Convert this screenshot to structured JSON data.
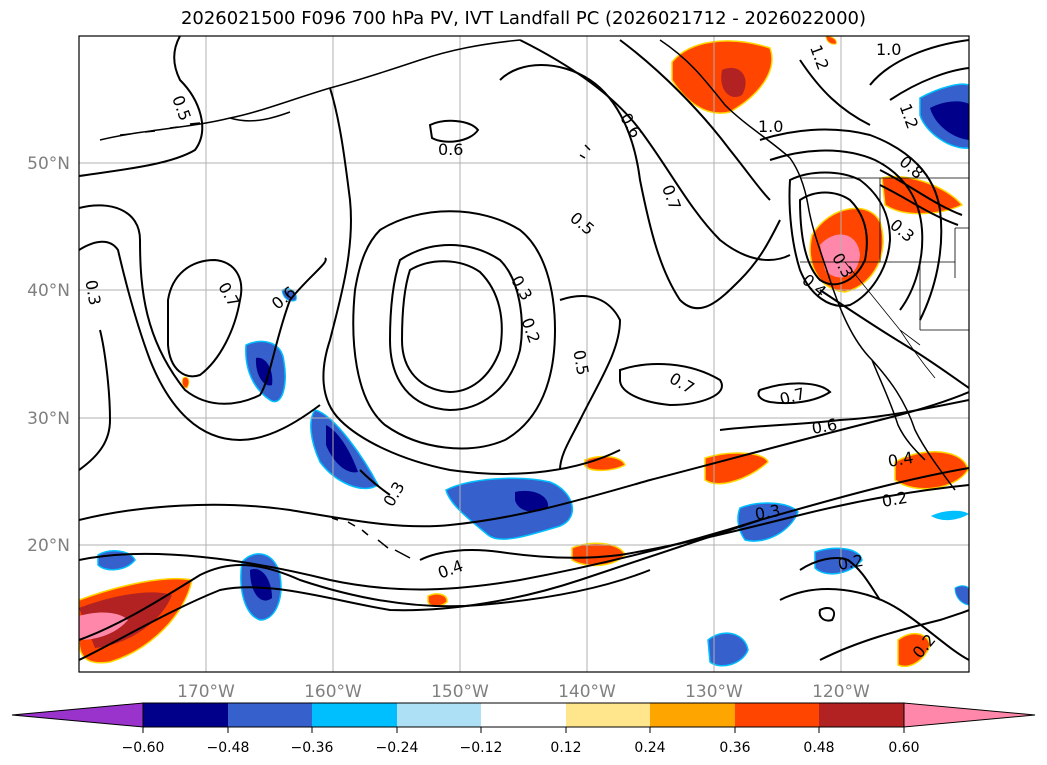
{
  "title": "2026021500 F096 700 hPa PV, IVT Landfall PC (2026021712 - 2026022000)",
  "map": {
    "lon_range": [
      -180,
      -110
    ],
    "lat_range": [
      10,
      60
    ],
    "lat_ticks": [
      "50°N",
      "40°N",
      "30°N",
      "20°N"
    ],
    "lon_ticks": [
      "170°W",
      "160°W",
      "150°W",
      "140°W",
      "130°W",
      "120°W"
    ],
    "contour_labels": [
      "0.5",
      "0.6",
      "0.6",
      "0.5",
      "0.7",
      "1.0",
      "1.2",
      "1.0",
      "1.2",
      "0.8",
      "0.3",
      "0.4",
      "0.3",
      "0.3",
      "0.7",
      "0.6",
      "0.3",
      "0.2",
      "0.5",
      "0.7",
      "0.7",
      "0.6",
      "0.4",
      "0.2",
      "0.3",
      "0.3",
      "0.4",
      "0.2",
      "0.2"
    ]
  },
  "colorbar": {
    "tick_labels": [
      "−0.60",
      "−0.48",
      "−0.36",
      "−0.24",
      "−0.12",
      "0.12",
      "0.24",
      "0.36",
      "0.48",
      "0.60"
    ],
    "colors": [
      "#9933cc",
      "#00008b",
      "#3660cc",
      "#00bfff",
      "#ade0f5",
      "#ffffff",
      "#ffe68c",
      "#ffa500",
      "#ff4500",
      "#b22222",
      "#ff88aa",
      "#ff88aa"
    ]
  }
}
